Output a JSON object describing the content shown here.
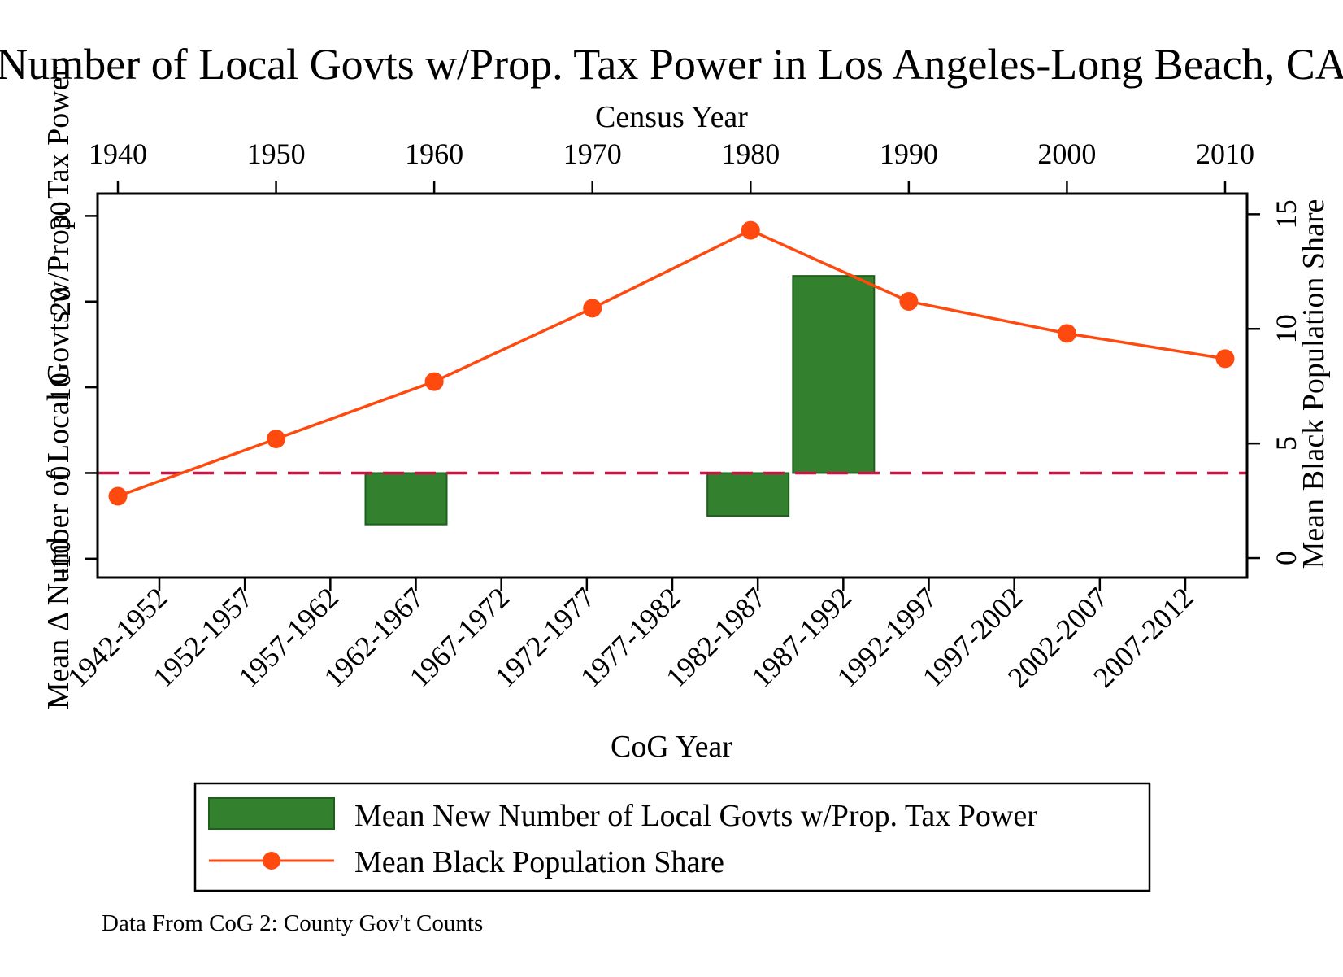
{
  "chart_data": {
    "type": "bar",
    "title": "Number of Local Govts w/Prop. Tax Power in Los Angeles-Long Beach, CA",
    "note": "Data From CoG 2: County Gov't Counts",
    "left_axis": {
      "label": "Mean Δ Number of Local Govts w/Prop. Tax Power",
      "ticks": [
        -10,
        0,
        10,
        20,
        30
      ],
      "ylim": [
        -12.2,
        32.6
      ]
    },
    "right_axis": {
      "label": "Mean Black Population Share",
      "ticks": [
        0,
        5,
        10,
        15
      ],
      "ylim": [
        -0.85,
        15.9
      ]
    },
    "bottom_axis": {
      "label": "CoG Year",
      "categories": [
        "1942-1952",
        "1952-1957",
        "1957-1962",
        "1962-1967",
        "1967-1972",
        "1972-1977",
        "1977-1982",
        "1982-1987",
        "1987-1992",
        "1992-1997",
        "1997-2002",
        "2002-2007",
        "2007-2012"
      ]
    },
    "top_axis": {
      "label": "Census Year",
      "ticks": [
        1940,
        1950,
        1960,
        1970,
        1980,
        1990,
        2000,
        2010
      ]
    },
    "series": [
      {
        "name": "Mean New Number of Local Govts w/Prop. Tax Power",
        "type": "bar",
        "axis": "left",
        "color": "#33802f",
        "values": [
          0,
          0,
          0,
          -6,
          0,
          0,
          0,
          -5,
          23,
          0,
          0,
          0,
          0
        ]
      },
      {
        "name": "Mean Black Population Share",
        "type": "line",
        "axis": "right",
        "color": "#ff4a0f",
        "x": [
          1940,
          1950,
          1960,
          1970,
          1980,
          1990,
          2000,
          2010
        ],
        "values": [
          2.7,
          5.2,
          7.7,
          10.9,
          14.3,
          11.2,
          9.8,
          8.7
        ]
      }
    ],
    "reference_line": {
      "axis": "left",
      "value": 0,
      "style": "dashed",
      "color": "#cc1445"
    },
    "legend": {
      "placement": "bottom"
    }
  }
}
